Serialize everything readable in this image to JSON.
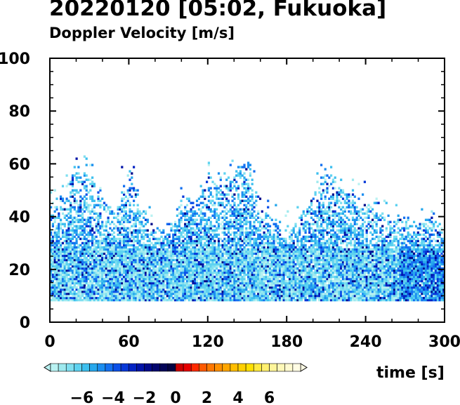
{
  "chart_data": {
    "type": "heatmap",
    "title": "20220120 [05:02, Fukuoka]",
    "subtitle": "Doppler Velocity [m/s]",
    "xlabel": "time [s]",
    "ylabel": "",
    "xlim": [
      0,
      300
    ],
    "ylim": [
      0,
      100
    ],
    "x_ticks": [
      "0",
      "60",
      "120",
      "180",
      "240",
      "300"
    ],
    "y_ticks": [
      "0",
      "20",
      "40",
      "60",
      "80",
      "100"
    ],
    "x_tick_values": [
      0,
      60,
      120,
      180,
      240,
      300
    ],
    "y_tick_values": [
      0,
      20,
      40,
      60,
      80,
      100
    ],
    "grid": false,
    "data_floor": 8,
    "echo_top_profile": {
      "x": [
        0,
        10,
        20,
        30,
        40,
        50,
        60,
        70,
        80,
        90,
        100,
        110,
        120,
        130,
        140,
        150,
        160,
        170,
        180,
        190,
        200,
        210,
        220,
        230,
        240,
        250,
        260,
        270,
        280,
        290,
        300
      ],
      "top": [
        45,
        48,
        58,
        55,
        45,
        42,
        58,
        40,
        35,
        35,
        48,
        45,
        55,
        52,
        58,
        60,
        45,
        38,
        33,
        40,
        48,
        60,
        50,
        48,
        45,
        40,
        38,
        40,
        38,
        40,
        35
      ]
    },
    "colorbar": {
      "min": -8,
      "max": 8,
      "step": 0.5,
      "extend": "both",
      "tick_labels": [
        "−6",
        "−4",
        "−2",
        "0",
        "2",
        "4",
        "6"
      ],
      "tick_values": [
        -6,
        -4,
        -2,
        0,
        2,
        4,
        6
      ],
      "colors": [
        "#b9f2f2",
        "#9ee9ee",
        "#7fdff0",
        "#5ed2f0",
        "#3dbfee",
        "#28a8ec",
        "#1c8ef0",
        "#1470f0",
        "#0c50e8",
        "#0838d8",
        "#0424c4",
        "#0214a8",
        "#020a8a",
        "#03066e",
        "#040457",
        "#050342",
        "#cc0000",
        "#e60000",
        "#ff2a00",
        "#ff5a00",
        "#ff7800",
        "#ff9000",
        "#ffa600",
        "#ffbe00",
        "#ffd000",
        "#ffe000",
        "#ffea40",
        "#fff070",
        "#fff59a",
        "#fff8b8",
        "#fffad0",
        "#fffce4"
      ]
    }
  }
}
